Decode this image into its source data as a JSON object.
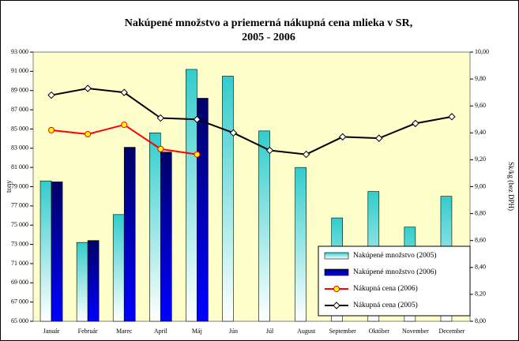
{
  "chart_data": {
    "type": "bar",
    "title": [
      "Nakúpené množstvo a priemerná nákupná cena mlieka v SR,",
      "2005 - 2006"
    ],
    "y_label": "tony",
    "y2_label": "Sk/kg (bez DPH)",
    "categories": [
      "Január",
      "Február",
      "Marec",
      "April",
      "Máj",
      "Jún",
      "Júl",
      "August",
      "September",
      "Október",
      "November",
      "December"
    ],
    "series": [
      {
        "name": "Nakúpené množstvo (2005)",
        "type": "bar",
        "color": "#33cccc",
        "gradient_to": "#ffffff",
        "values": [
          79600,
          73200,
          76100,
          84600,
          91200,
          90500,
          84800,
          81000,
          75750,
          78500,
          74800,
          78000
        ]
      },
      {
        "name": "Nakúpené množstvo (2006)",
        "type": "bar",
        "color": "#000066",
        "gradient_to": "#0000ff",
        "values": [
          79500,
          73400,
          83100,
          82600,
          88200,
          null,
          null,
          null,
          null,
          null,
          null,
          null
        ]
      },
      {
        "name": "Nákupná cena (2006)",
        "type": "line",
        "axis": "y2",
        "color": "#ff0000",
        "marker": "circle",
        "marker_fill": "#ffff00",
        "values": [
          9.42,
          9.39,
          9.46,
          9.28,
          9.24,
          null,
          null,
          null,
          null,
          null,
          null,
          null
        ]
      },
      {
        "name": "Nákupná cena (2005)",
        "type": "line",
        "axis": "y2",
        "color": "#000000",
        "marker": "diamond",
        "marker_fill": "#ffffff",
        "values": [
          9.68,
          9.73,
          9.7,
          9.51,
          9.5,
          9.4,
          9.27,
          9.24,
          9.37,
          9.36,
          9.47,
          9.52
        ]
      }
    ],
    "ylim": [
      65000,
      93000
    ],
    "yticks": [
      {
        "value": 65000,
        "label": "65 000"
      },
      {
        "value": 67000,
        "label": "67 000"
      },
      {
        "value": 69000,
        "label": "69 000"
      },
      {
        "value": 71000,
        "label": "71 000"
      },
      {
        "value": 73000,
        "label": "73 000"
      },
      {
        "value": 75000,
        "label": "75 000"
      },
      {
        "value": 77000,
        "label": "77 000"
      },
      {
        "value": 79000,
        "label": "79 000"
      },
      {
        "value": 81000,
        "label": "81 000"
      },
      {
        "value": 83000,
        "label": "83 000"
      },
      {
        "value": 85000,
        "label": "85 000"
      },
      {
        "value": 87000,
        "label": "87 000"
      },
      {
        "value": 89000,
        "label": "89 000"
      },
      {
        "value": 91000,
        "label": "91 000"
      },
      {
        "value": 93000,
        "label": "93 000"
      }
    ],
    "y2lim": [
      8,
      10
    ],
    "y2ticks": [
      {
        "value": 8,
        "label": "8,00"
      },
      {
        "value": 8.2,
        "label": "8,20"
      },
      {
        "value": 8.4,
        "label": "8,40"
      },
      {
        "value": 8.6,
        "label": "8,60"
      },
      {
        "value": 8.8,
        "label": "8,80"
      },
      {
        "value": 9,
        "label": "9,00"
      },
      {
        "value": 9.2,
        "label": "9,20"
      },
      {
        "value": 9.4,
        "label": "9,40"
      },
      {
        "value": 9.6,
        "label": "9,60"
      },
      {
        "value": 9.8,
        "label": "9,80"
      },
      {
        "value": 10,
        "label": "10,00"
      }
    ],
    "plot_background": "#ffffcc",
    "legend": "lower right"
  }
}
